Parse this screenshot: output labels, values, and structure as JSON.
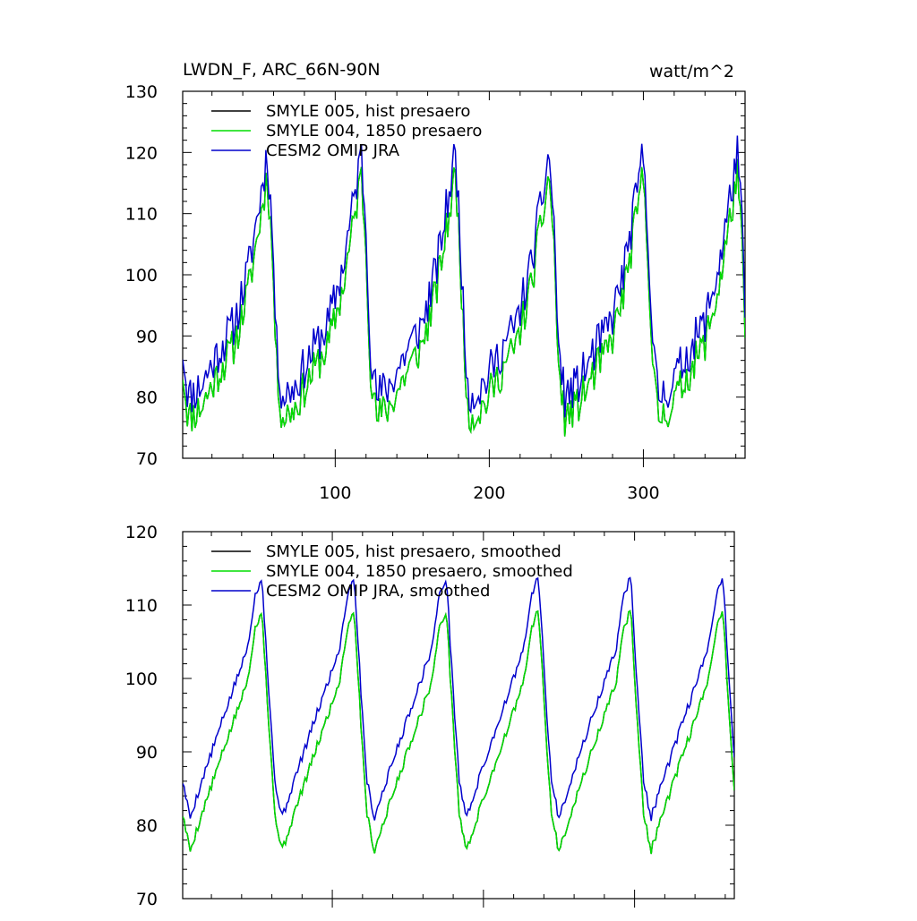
{
  "figure": {
    "title_left": "LWDN_F, ARC_66N-90N",
    "title_right": "watt/m^2"
  },
  "chart_data": [
    {
      "type": "line",
      "title": "LWDN_F, ARC_66N-90N",
      "units": "watt/m^2",
      "xlabel": "",
      "ylabel": "",
      "xlim": [
        1,
        366
      ],
      "ylim": [
        70,
        130
      ],
      "xticks": [
        100,
        200,
        300
      ],
      "yticks": [
        70,
        80,
        90,
        100,
        110,
        120,
        130
      ],
      "x_tick_labels_shown": true,
      "legend_position": "top-left",
      "series": [
        {
          "name": "SMYLE 005, hist presaero",
          "color": "#000000",
          "offset": -3.5,
          "noise": 3.2,
          "seed": 11
        },
        {
          "name": "SMYLE 004, 1850 presaero",
          "color": "#00dd00",
          "offset": -3.5,
          "noise": 3.2,
          "seed": 11
        },
        {
          "name": "CESM2 OMIP JRA",
          "color": "#0000cc",
          "offset": 0.0,
          "noise": 3.6,
          "seed": 11
        }
      ]
    },
    {
      "type": "line",
      "title": "",
      "xlabel": "",
      "ylabel": "",
      "xlim": [
        1,
        366
      ],
      "ylim": [
        70,
        120
      ],
      "xticks": [
        100,
        200,
        300
      ],
      "yticks": [
        70,
        80,
        90,
        100,
        110,
        120
      ],
      "x_tick_labels_shown": false,
      "legend_position": "top-left",
      "series": [
        {
          "name": "SMYLE 005, hist presaero, smoothed",
          "color": "#000000",
          "offset": -4.5,
          "noise": 0.6,
          "seed": 5
        },
        {
          "name": "SMYLE 004, 1850 presaero, smoothed",
          "color": "#00dd00",
          "offset": -4.5,
          "noise": 0.6,
          "seed": 5
        },
        {
          "name": "CESM2 OMIP JRA, smoothed",
          "color": "#0000cc",
          "offset": 0.0,
          "noise": 0.6,
          "seed": 5
        }
      ],
      "cycle": {
        "period_days": 61,
        "shape_keys": [
          [
            0.0,
            86.0
          ],
          [
            0.08,
            81.0
          ],
          [
            0.22,
            86.5
          ],
          [
            0.45,
            95.0
          ],
          [
            0.7,
            104.0
          ],
          [
            0.78,
            111.0
          ],
          [
            0.86,
            114.0
          ],
          [
            0.93,
            99.0
          ],
          [
            1.0,
            86.0
          ]
        ]
      }
    }
  ],
  "top_cycle": {
    "period_days": 61,
    "shape_keys": [
      [
        0.0,
        88.0
      ],
      [
        0.06,
        80.0
      ],
      [
        0.2,
        82.0
      ],
      [
        0.4,
        88.0
      ],
      [
        0.55,
        92.0
      ],
      [
        0.7,
        101.0
      ],
      [
        0.82,
        112.0
      ],
      [
        0.9,
        120.0
      ],
      [
        0.95,
        108.0
      ],
      [
        1.0,
        88.0
      ]
    ]
  }
}
